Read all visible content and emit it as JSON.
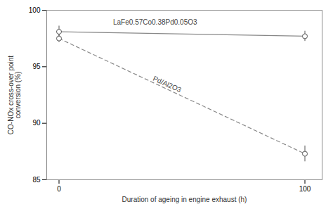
{
  "chart_data": {
    "type": "line",
    "xlabel": "Duration of ageing in engine exhaust (h)",
    "ylabel": "CO-NOx cross-over point\nconversion (%)",
    "xlim": [
      -5,
      107
    ],
    "ylim": [
      85,
      100
    ],
    "xticks": [
      0,
      100
    ],
    "yticks": [
      85,
      90,
      95,
      100
    ],
    "grid": false,
    "series": [
      {
        "color": "#888888",
        "line_style": "solid",
        "marker": "o",
        "x": [
          0,
          100
        ],
        "values": [
          98.1,
          97.7
        ],
        "yerr": [
          0.5,
          0.45
        ]
      },
      {
        "color": "#888888",
        "line_style": "dashed",
        "marker": "o",
        "x": [
          0,
          100
        ],
        "values": [
          97.5,
          87.3
        ],
        "yerr": [
          0.35,
          0.7
        ]
      }
    ],
    "annotations": [
      {
        "text": "LaFe0.57Co0.38Pd0.05O3",
        "x": 22,
        "y": 98.7
      },
      {
        "text": "Pd/Al2O3",
        "x": 38,
        "y": 93.8
      }
    ]
  }
}
